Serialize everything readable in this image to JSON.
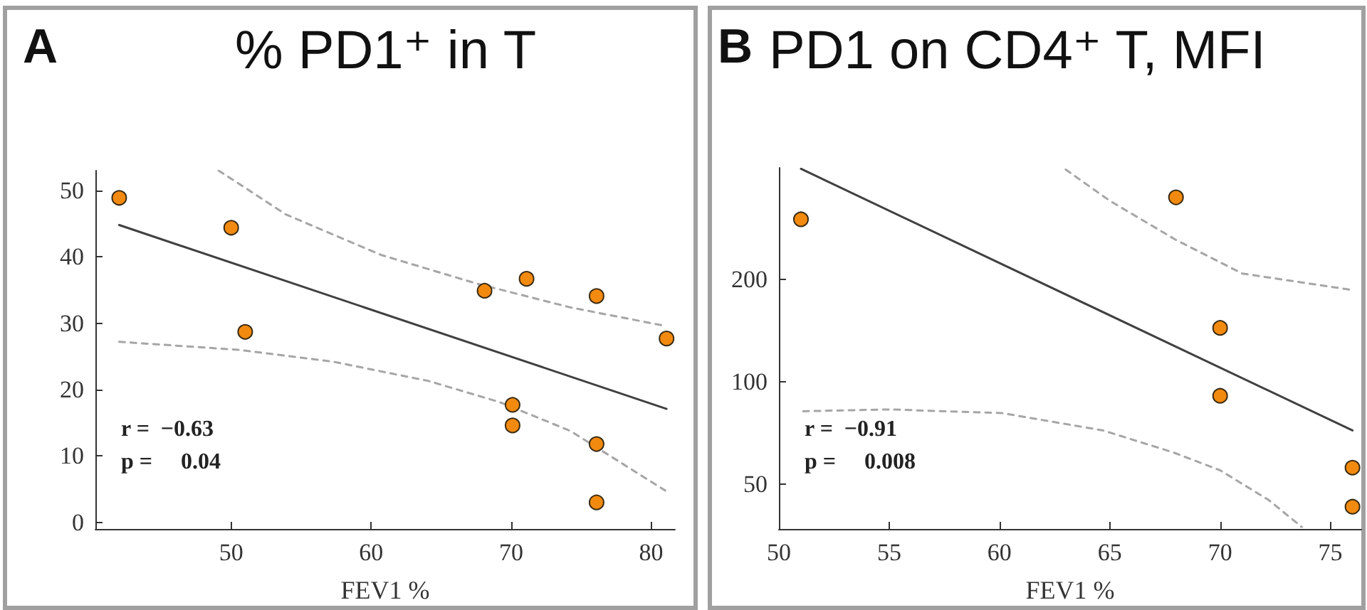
{
  "chart_data": [
    {
      "type": "scatter",
      "title": "% PD1⁺ in T",
      "xlabel": "FEV1 %",
      "annotations": [
        "A",
        "r =  −0.63",
        "p =     0.04"
      ],
      "xlim": [
        40.3,
        81.7
      ],
      "ylim": [
        -1,
        53
      ],
      "xticks": [
        50,
        60,
        70,
        80
      ],
      "yticks": [
        0,
        10,
        20,
        30,
        40,
        50
      ],
      "grid": false,
      "marker": "circle",
      "series": [
        {
          "type": "line",
          "marker": "none",
          "line_style": "dashed",
          "color": "#a6a6a6",
          "x": [
            49.1,
            50.5,
            53.9,
            60.7,
            67.5,
            74.2,
            81.0
          ],
          "values": [
            53,
            51.1,
            46.4,
            40.3,
            36.0,
            32.4,
            29.6
          ]
        },
        {
          "type": "line",
          "marker": "none",
          "line_style": "dashed",
          "color": "#a6a6a6",
          "x": [
            42,
            50.5,
            57.3,
            64.1,
            69.2,
            74.2,
            81
          ],
          "values": [
            27.2,
            26.0,
            24.2,
            21.3,
            18.1,
            13.8,
            4.8
          ]
        },
        {
          "type": "line",
          "marker": "none",
          "line_style": "solid",
          "color": "#404040",
          "x": [
            42,
            81.1
          ],
          "values": [
            44.8,
            17.1
          ]
        },
        {
          "color": "#f28a10",
          "x": [
            42,
            50,
            51,
            68.1,
            71.1,
            76.1,
            81.1,
            70.1,
            70.1,
            76.1,
            76.1
          ],
          "values": [
            48.9,
            44.4,
            28.7,
            34.9,
            36.7,
            34.1,
            27.7,
            17.7,
            14.6,
            11.8,
            3.0
          ]
        }
      ]
    },
    {
      "type": "scatter",
      "title": "PD1 on CD4⁺ T, MFI",
      "xlabel": "FEV1 %",
      "annotations": [
        "B",
        "r =  −0.91",
        "p =     0.008"
      ],
      "log": "y",
      "xlim": [
        50,
        76.4
      ],
      "ylim": [
        37,
        425
      ],
      "xticks": [
        50,
        55,
        60,
        65,
        70,
        75
      ],
      "yticks": [
        50,
        100,
        200
      ],
      "grid": false,
      "marker": "circle",
      "series": [
        {
          "type": "line",
          "marker": "none",
          "line_style": "dashed",
          "color": "#a6a6a6",
          "x": [
            63,
            65,
            68,
            71,
            76
          ],
          "values": [
            420,
            340,
            261,
            208,
            186
          ]
        },
        {
          "type": "line",
          "marker": "none",
          "line_style": "dashed",
          "color": "#a6a6a6",
          "x": [
            51.1,
            55,
            60.1,
            64.7,
            67.9,
            70,
            72.2,
            73.7
          ],
          "values": [
            82,
            83,
            81,
            72,
            62,
            55,
            45,
            37.5
          ]
        },
        {
          "type": "line",
          "marker": "none",
          "line_style": "solid",
          "color": "#404040",
          "x": [
            51,
            76
          ],
          "values": [
            422,
            72
          ]
        },
        {
          "color": "#f28a10",
          "x": [
            51,
            68,
            70,
            70,
            76,
            76
          ],
          "values": [
            300,
            348,
            144,
            91,
            56,
            43
          ]
        }
      ]
    }
  ]
}
